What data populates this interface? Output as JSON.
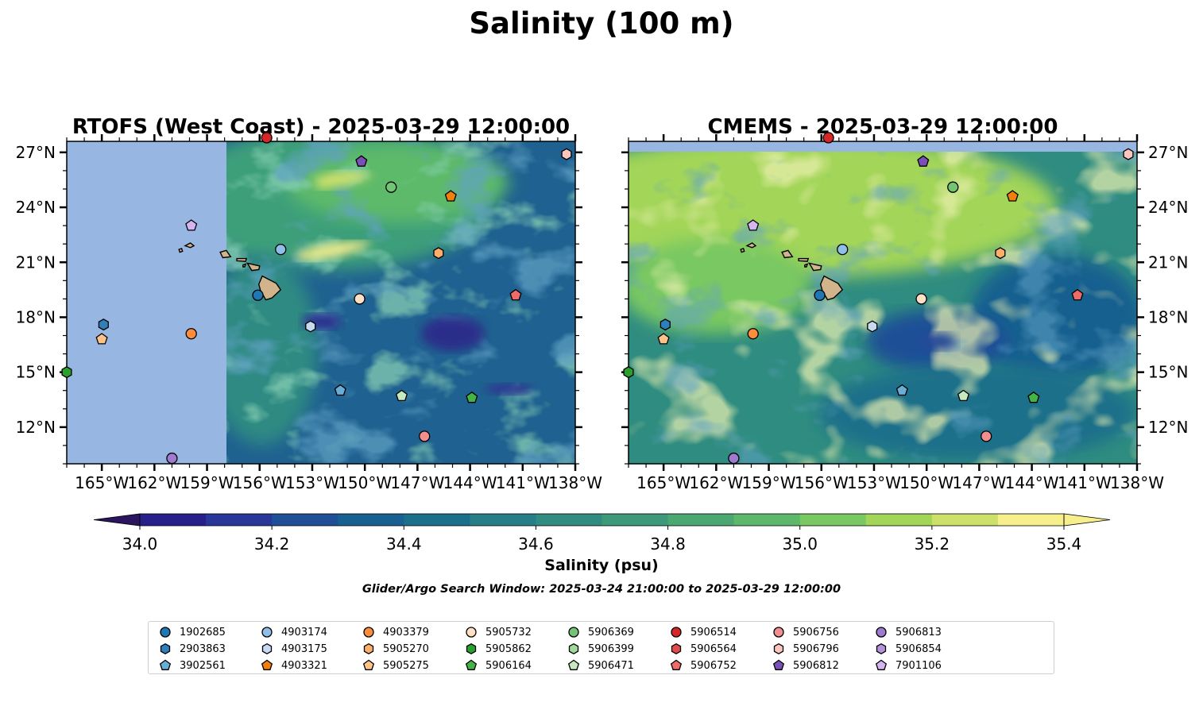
{
  "figure": {
    "title": "Salinity (100 m)",
    "note": "Glider/Argo Search Window: 2025-03-24 21:00:00 to 2025-03-29 12:00:00"
  },
  "panels": [
    {
      "title": "RTOFS (West Coast) - 2025-03-29 12:00:00",
      "data_coverage": "east of about 158.2°W"
    },
    {
      "title": "CMEMS - 2025-03-29 12:00:00",
      "data_coverage": "south of about 27.1°N"
    }
  ],
  "axes": {
    "lon_range": [
      -167,
      -138
    ],
    "lat_range": [
      10,
      27.6
    ],
    "x_ticks": [
      -165,
      -162,
      -159,
      -156,
      -153,
      -150,
      -147,
      -144,
      -141,
      -138
    ],
    "x_tick_labels": [
      "165°W",
      "162°W",
      "159°W",
      "156°W",
      "153°W",
      "150°W",
      "147°W",
      "144°W",
      "141°W",
      "138°W"
    ],
    "y_ticks": [
      27,
      24,
      21,
      18,
      15,
      12
    ],
    "y_tick_labels": [
      "27°N",
      "24°N",
      "21°N",
      "18°N",
      "15°N",
      "12°N"
    ]
  },
  "colorbar": {
    "label": "Salinity (psu)",
    "range": [
      34.0,
      35.4
    ],
    "step": 0.1,
    "extend": "both",
    "ticks": [
      34.0,
      34.2,
      34.4,
      34.6,
      34.8,
      35.0,
      35.2,
      35.4
    ],
    "tick_labels": [
      "34.0",
      "34.2",
      "34.4",
      "34.6",
      "34.8",
      "35.0",
      "35.2",
      "35.4"
    ],
    "colors": [
      "#29165e",
      "#28208a",
      "#2a3799",
      "#1f4f96",
      "#17608f",
      "#1a6f8a",
      "#267f87",
      "#2f8c80",
      "#3c997a",
      "#4ba872",
      "#5db86b",
      "#79c862",
      "#a2d558",
      "#cde06a",
      "#f7ee8c"
    ]
  },
  "colors": {
    "land": "#d2b48c",
    "no_data": "#97b6e2",
    "deep_blue_patch": "#2a2f8a"
  },
  "floats": [
    {
      "id": "1902685",
      "marker": "circle",
      "color": "#1f77b4",
      "lon": -156.1,
      "lat": 19.2
    },
    {
      "id": "2903863",
      "marker": "hexagon",
      "color": "#2f7fbb",
      "lon": -164.9,
      "lat": 17.6
    },
    {
      "id": "3902561",
      "marker": "pentagon",
      "color": "#6aaed6",
      "lon": -151.4,
      "lat": 14.0
    },
    {
      "id": "4903174",
      "marker": "circle",
      "color": "#8fbfe8",
      "lon": -154.8,
      "lat": 21.7
    },
    {
      "id": "4903175",
      "marker": "hexagon",
      "color": "#c6dbef",
      "lon": -153.1,
      "lat": 17.5
    },
    {
      "id": "4903321",
      "marker": "pentagon",
      "color": "#f07f0e",
      "lon": -145.1,
      "lat": 24.6
    },
    {
      "id": "4903379",
      "marker": "circle",
      "color": "#fd8d3c",
      "lon": -159.9,
      "lat": 17.1
    },
    {
      "id": "5905270",
      "marker": "hexagon",
      "color": "#fdae6b",
      "lon": -145.8,
      "lat": 21.5
    },
    {
      "id": "5905275",
      "marker": "pentagon",
      "color": "#fdc38a",
      "lon": -165.0,
      "lat": 16.8
    },
    {
      "id": "5905732",
      "marker": "circle",
      "color": "#fde0c5",
      "lon": -150.3,
      "lat": 19.0
    },
    {
      "id": "5905862",
      "marker": "hexagon",
      "color": "#2ca02c",
      "lon": -167.0,
      "lat": 15.0
    },
    {
      "id": "5906164",
      "marker": "pentagon",
      "color": "#46b346",
      "lon": -143.9,
      "lat": 13.6
    },
    {
      "id": "5906369",
      "marker": "circle",
      "color": "#74c476",
      "lon": -148.5,
      "lat": 25.1
    },
    {
      "id": "5906399",
      "marker": "hexagon",
      "color": "#a1d99b",
      "lon": null,
      "lat": null
    },
    {
      "id": "5906471",
      "marker": "pentagon",
      "color": "#c7e9c0",
      "lon": -147.9,
      "lat": 13.7
    },
    {
      "id": "5906514",
      "marker": "circle",
      "color": "#d62728",
      "lon": -155.6,
      "lat": 27.8
    },
    {
      "id": "5906564",
      "marker": "hexagon",
      "color": "#e34a4b",
      "lon": null,
      "lat": null
    },
    {
      "id": "5906752",
      "marker": "pentagon",
      "color": "#f06a6a",
      "lon": -141.4,
      "lat": 19.2
    },
    {
      "id": "5906756",
      "marker": "circle",
      "color": "#f28e8e",
      "lon": -146.6,
      "lat": 11.5
    },
    {
      "id": "5906796",
      "marker": "hexagon",
      "color": "#fcc5c0",
      "lon": -138.5,
      "lat": 26.9
    },
    {
      "id": "5906812",
      "marker": "pentagon",
      "color": "#7b4fb8",
      "lon": -150.2,
      "lat": 26.5
    },
    {
      "id": "5906813",
      "marker": "circle",
      "color": "#9e7bcf",
      "lon": -161.0,
      "lat": 10.3
    },
    {
      "id": "5906854",
      "marker": "hexagon",
      "color": "#b492d9",
      "lon": null,
      "lat": null
    },
    {
      "id": "7901106",
      "marker": "pentagon",
      "color": "#d4b5f0",
      "lon": -159.9,
      "lat": 23.0
    }
  ]
}
